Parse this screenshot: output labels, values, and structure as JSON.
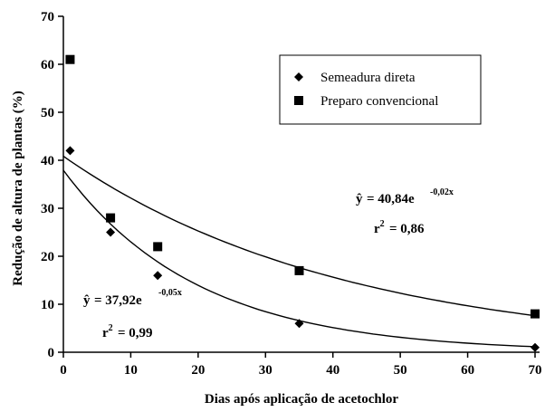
{
  "chart_data": {
    "type": "scatter",
    "xlabel": "Dias após aplicação de  acetochlor",
    "ylabel": "Redução de altura de plantas (%)",
    "xlim": [
      0,
      70
    ],
    "ylim": [
      0,
      70
    ],
    "x_ticks": [
      0,
      10,
      20,
      30,
      40,
      50,
      60,
      70
    ],
    "y_ticks": [
      0,
      10,
      20,
      30,
      40,
      50,
      60,
      70
    ],
    "grid": false,
    "legend_position": "top-right",
    "series": [
      {
        "name": "Semeadura direta",
        "marker": "diamond",
        "points": [
          {
            "x": 1,
            "y": 42
          },
          {
            "x": 7,
            "y": 25
          },
          {
            "x": 14,
            "y": 16
          },
          {
            "x": 35,
            "y": 6
          },
          {
            "x": 70,
            "y": 1
          }
        ],
        "fit": {
          "a": 37.92,
          "b": -0.05,
          "equation": "= 37,92e",
          "exponent": "-0,05x",
          "r2": "= 0,99"
        }
      },
      {
        "name": "Preparo convencional",
        "marker": "square",
        "points": [
          {
            "x": 1,
            "y": 61
          },
          {
            "x": 7,
            "y": 28
          },
          {
            "x": 14,
            "y": 22
          },
          {
            "x": 35,
            "y": 17
          },
          {
            "x": 70,
            "y": 8
          }
        ],
        "fit": {
          "a": 40.84,
          "b": -0.024,
          "equation": "= 40,84e",
          "exponent": "-0,02x",
          "r2": "= 0,86"
        }
      }
    ]
  }
}
